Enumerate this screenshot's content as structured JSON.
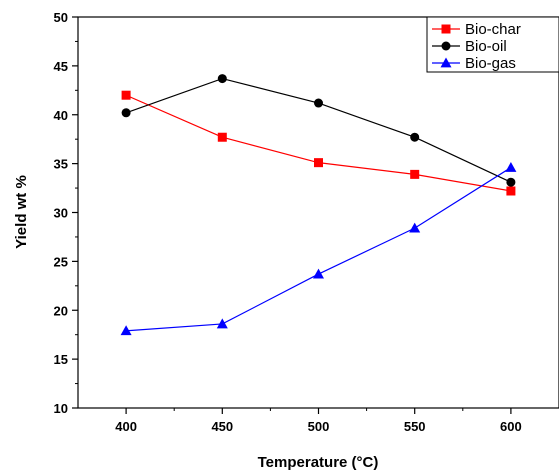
{
  "chart_data": {
    "type": "line",
    "xlabel": "Temperature (°C)",
    "ylabel": "Yield wt %",
    "x": [
      400,
      450,
      500,
      550,
      600
    ],
    "x_ticks": [
      "400",
      "450",
      "500",
      "550",
      "600"
    ],
    "y_ticks": [
      "10",
      "15",
      "20",
      "25",
      "30",
      "35",
      "40",
      "45",
      "50"
    ],
    "xlim": [
      375,
      625
    ],
    "ylim": [
      10,
      50
    ],
    "grid": false,
    "legend_position": "top-right",
    "series": [
      {
        "name": "Bio-char",
        "color": "#ff0000",
        "marker": "square",
        "values": [
          42.0,
          37.7,
          35.1,
          33.9,
          32.2
        ]
      },
      {
        "name": "Bio-oil",
        "color": "#000000",
        "marker": "circle",
        "values": [
          40.2,
          43.7,
          41.2,
          37.7,
          33.1
        ]
      },
      {
        "name": "Bio-gas",
        "color": "#0000ff",
        "marker": "triangle",
        "values": [
          17.9,
          18.6,
          23.7,
          28.4,
          34.6
        ]
      }
    ]
  }
}
